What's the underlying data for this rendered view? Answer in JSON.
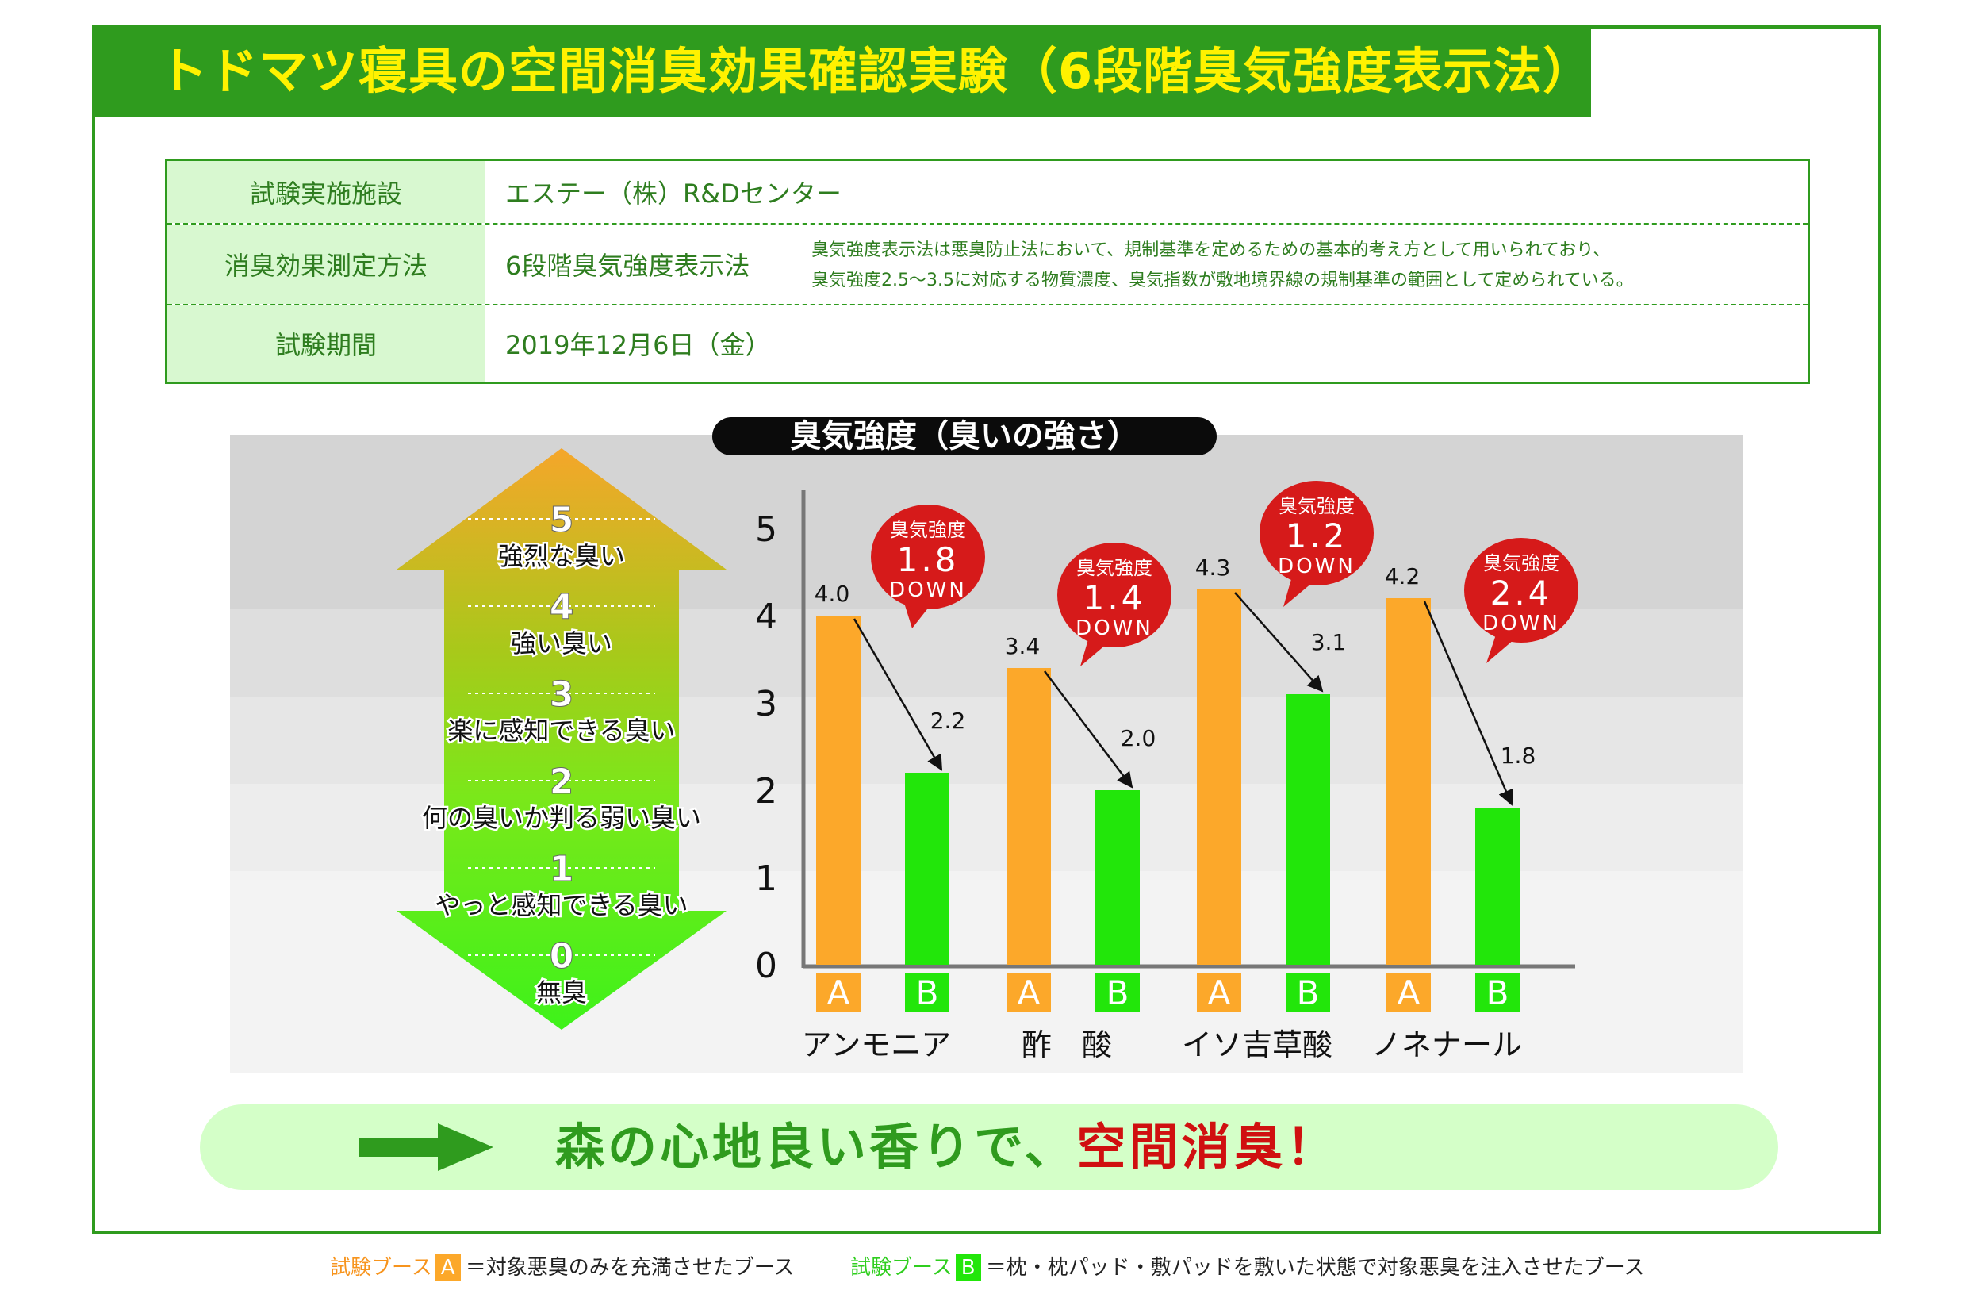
{
  "title": "トドマツ寝具の空間消臭効果確認実験（6段階臭気強度表示法）",
  "info": {
    "rows": [
      {
        "label": "試験実施施設",
        "value": "エステー（株）R&Dセンター"
      },
      {
        "label": "消臭効果測定方法",
        "value": "6段階臭気強度表示法",
        "note_line1": "臭気強度表示法は悪臭防止法において、規制基準を定めるための基本的考え方として用いられており、",
        "note_line2": "臭気強度2.5〜3.5に対応する物質濃度、臭気指数が敷地境界線の規制基準の範囲として定められている。"
      },
      {
        "label": "試験期間",
        "value": "2019年12月6日（金）"
      }
    ]
  },
  "chart_data": {
    "type": "bar",
    "title": "臭気強度（臭いの強さ）",
    "categories": [
      "アンモニア",
      "酢　酸",
      "イソ吉草酸",
      "ノネナール"
    ],
    "series": [
      {
        "name": "A",
        "values": [
          4.0,
          3.4,
          4.3,
          4.2
        ],
        "color": "#fca82a"
      },
      {
        "name": "B",
        "values": [
          2.2,
          2.0,
          3.1,
          1.8
        ],
        "color": "#22e60a"
      }
    ],
    "value_labels_a": [
      "4.0",
      "3.4",
      "4.3",
      "4.2"
    ],
    "value_labels_b": [
      "2.2",
      "2.0",
      "3.1",
      "1.8"
    ],
    "ylim": [
      0,
      5
    ],
    "yticks": [
      "0",
      "1",
      "2",
      "3",
      "4",
      "5"
    ],
    "callouts": [
      {
        "header": "臭気強度",
        "value": "1.8",
        "suffix": "DOWN"
      },
      {
        "header": "臭気強度",
        "value": "1.4",
        "suffix": "DOWN"
      },
      {
        "header": "臭気強度",
        "value": "1.2",
        "suffix": "DOWN"
      },
      {
        "header": "臭気強度",
        "value": "2.4",
        "suffix": "DOWN"
      }
    ],
    "scale_levels": [
      {
        "level": "5",
        "desc": "強烈な臭い"
      },
      {
        "level": "4",
        "desc": "強い臭い"
      },
      {
        "level": "3",
        "desc": "楽に感知できる臭い"
      },
      {
        "level": "2",
        "desc": "何の臭いか判る弱い臭い"
      },
      {
        "level": "1",
        "desc": "やっと感知できる臭い"
      },
      {
        "level": "0",
        "desc": "無臭"
      }
    ]
  },
  "banner": {
    "text_green": "森の心地良い香りで、",
    "text_red": "空間消臭！"
  },
  "footnotes": [
    {
      "prefix": "試験ブース",
      "box": "A",
      "text": "＝対象悪臭のみを充満させたブース",
      "color": "#f7941d"
    },
    {
      "prefix": "試験ブース",
      "box": "B",
      "text": "＝枕・枕パッド・敷パッドを敷いた状態で対象悪臭を注入させたブース",
      "color": "#2fce1e"
    }
  ]
}
